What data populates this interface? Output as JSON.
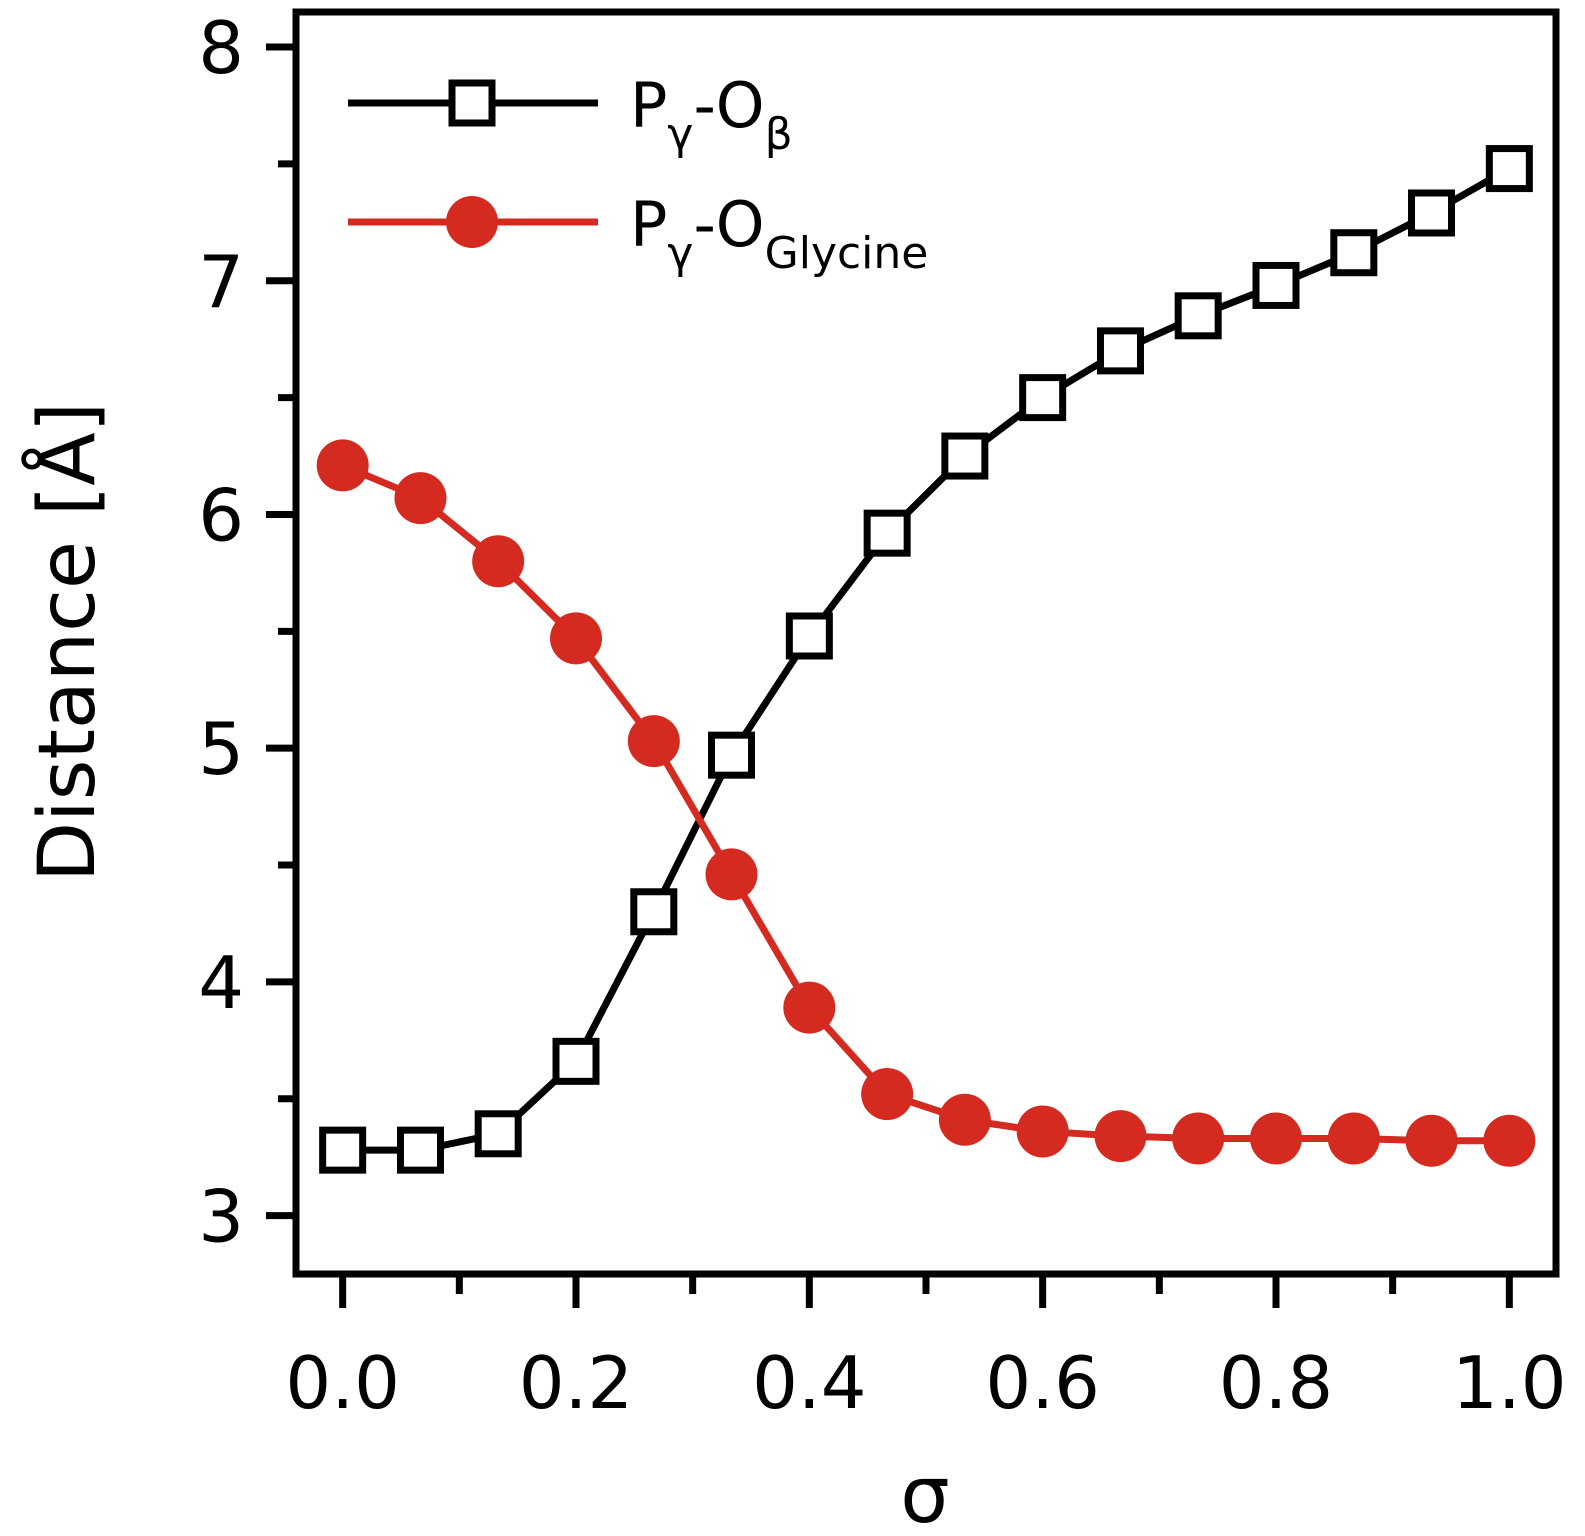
{
  "chart_data": {
    "type": "line",
    "xlabel": "σ",
    "ylabel": "Distance [Å]",
    "xlim": [
      -0.04,
      1.04
    ],
    "ylim": [
      2.75,
      8.15
    ],
    "x_ticks": [
      "0.0",
      "0.2",
      "0.4",
      "0.6",
      "0.8",
      "1.0"
    ],
    "y_ticks": [
      "3",
      "4",
      "5",
      "6",
      "7",
      "8"
    ],
    "legend_position": "top-left",
    "x": [
      0.0,
      0.0667,
      0.1333,
      0.2,
      0.2667,
      0.3333,
      0.4,
      0.4667,
      0.5333,
      0.6,
      0.6667,
      0.7333,
      0.8,
      0.8667,
      0.9333,
      1.0
    ],
    "series": [
      {
        "name_main": "P",
        "name_sub1": "γ",
        "name_mid": "-O",
        "name_sub2": "β",
        "color": "#000000",
        "marker": "open-square",
        "values": [
          3.28,
          3.28,
          3.35,
          3.66,
          4.3,
          4.97,
          5.48,
          5.92,
          6.25,
          6.5,
          6.7,
          6.85,
          6.98,
          7.12,
          7.29,
          7.48
        ]
      },
      {
        "name_main": "P",
        "name_sub1": "γ",
        "name_mid": "-O",
        "name_sub2": "Glycine",
        "color": "#d42a20",
        "marker": "filled-circle",
        "values": [
          6.21,
          6.07,
          5.8,
          5.47,
          5.03,
          4.46,
          3.89,
          3.52,
          3.41,
          3.36,
          3.34,
          3.33,
          3.33,
          3.33,
          3.32,
          3.32
        ]
      }
    ]
  }
}
